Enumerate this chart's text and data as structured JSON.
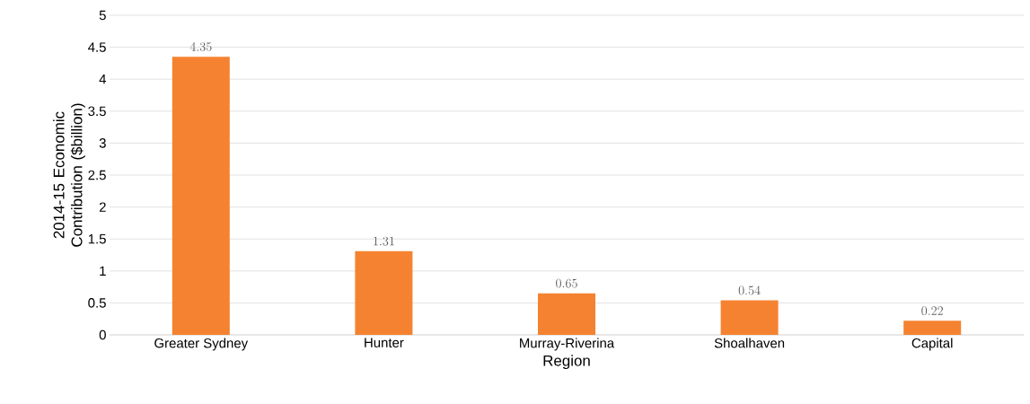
{
  "chart_data": {
    "type": "bar",
    "xlabel": "Region",
    "ylabel": "2014-15 Economic Contribution ($billion)",
    "categories": [
      "Greater Sydney",
      "Hunter",
      "Murray-Riverina",
      "Shoalhaven",
      "Capital"
    ],
    "values": [
      4.35,
      1.31,
      0.65,
      0.54,
      0.22
    ],
    "color": "#f58230",
    "ylim": [
      0,
      5
    ],
    "yticks": [
      0,
      0.5,
      1,
      1.5,
      2,
      2.5,
      3,
      3.5,
      4,
      4.5,
      5
    ],
    "grid": "y",
    "data_labels": true
  }
}
